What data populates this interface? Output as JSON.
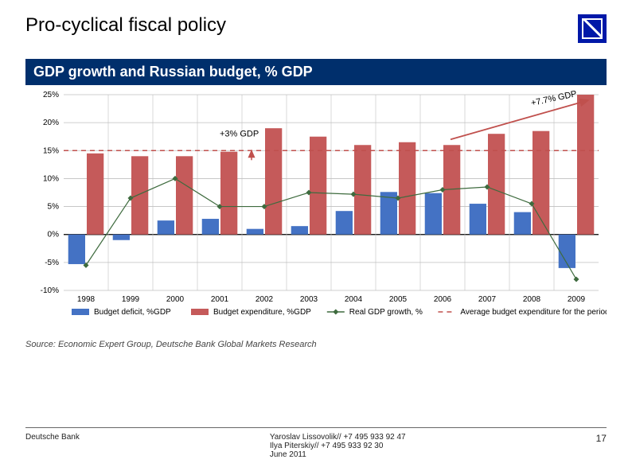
{
  "page": {
    "title": "Pro-cyclical fiscal policy",
    "chart_title": "GDP growth and Russian budget, % GDP",
    "source": "Source: Economic Expert Group, Deutsche Bank Global Markets Research"
  },
  "logo": {
    "bg": "#0018a8"
  },
  "chart": {
    "type": "bar-line-combo",
    "years": [
      "1998",
      "1999",
      "2000",
      "2001",
      "2002",
      "2003",
      "2004",
      "2005",
      "2006",
      "2007",
      "2008",
      "2009"
    ],
    "ylim": [
      -10,
      25
    ],
    "ytick_step": 5,
    "ytick_labels": [
      "-10%",
      "-5%",
      "0%",
      "5%",
      "10%",
      "15%",
      "20%",
      "25%"
    ],
    "background_color": "#ffffff",
    "zero_line_color": "#000000",
    "grid_color": "#bfbfbf",
    "series": {
      "budget_deficit": {
        "label": "Budget deficit, %GDP",
        "type": "bar",
        "color": "#4472c4",
        "values": [
          -5.3,
          -1.0,
          2.5,
          2.8,
          1.0,
          1.5,
          4.2,
          7.6,
          7.4,
          5.5,
          4.0,
          -6.0
        ]
      },
      "budget_expenditure": {
        "label": "Budget expenditure, %GDP",
        "type": "bar",
        "color": "#c55a5a",
        "values": [
          14.5,
          14.0,
          14.0,
          14.8,
          19.0,
          17.5,
          16.0,
          16.5,
          16.0,
          18.0,
          18.5,
          25.0
        ]
      },
      "real_gdp_growth": {
        "label": "Real GDP growth, %",
        "type": "line",
        "color": "#3e6b3e",
        "marker": "diamond",
        "marker_size": 7,
        "line_width": 1.2,
        "values": [
          -5.5,
          6.5,
          10.0,
          5.0,
          5.0,
          7.5,
          7.2,
          6.5,
          8.0,
          8.5,
          5.5,
          -8.0
        ]
      },
      "avg_expenditure": {
        "label": "Average budget expenditure for the period, %",
        "type": "hline",
        "color": "#c0504d",
        "dash": "6,5",
        "line_width": 1.5,
        "value": 15.0
      }
    },
    "annotations": [
      {
        "text": "+3% GDP",
        "x_year": "2001",
        "y": 17.5,
        "fontsize": 11,
        "color": "#000",
        "arrow": false,
        "small_red_arrow_up": true
      },
      {
        "text": "+7.7% GDP",
        "x_year": "2008",
        "y": 23,
        "fontsize": 11,
        "color": "#000",
        "rotate": -12,
        "trend_arrow": {
          "from_year": "2006",
          "from_y": 17,
          "to_year": "2009",
          "to_y": 24,
          "color": "#c0504d"
        }
      }
    ],
    "legend": {
      "position": "bottom",
      "fontsize": 10
    },
    "bar_width": 0.38,
    "axis_fontsize": 10
  },
  "footer": {
    "left": "Deutsche Bank",
    "center_lines": [
      "Yaroslav Lissovolik// +7 495 933 92 47",
      "Ilya Piterskiy//        +7 495 933 92 30",
      "June 2011"
    ],
    "page_number": "17"
  }
}
